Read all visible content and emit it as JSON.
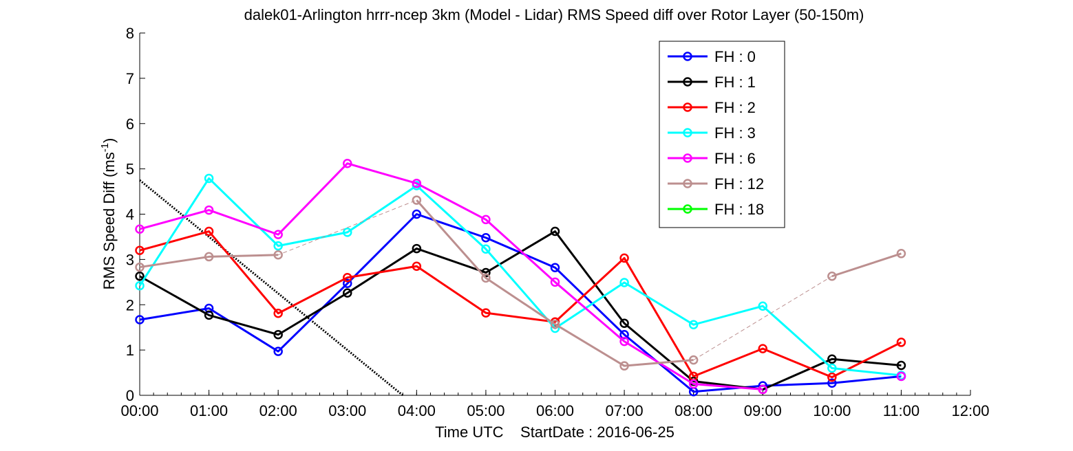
{
  "chart_data": {
    "type": "line",
    "title": "dalek01-Arlington hrrr-ncep 3km (Model - Lidar) RMS Speed diff over Rotor Layer (50-150m)",
    "ylabel_main": "RMS Speed Diff (ms",
    "ylabel_sup": "-1",
    "ylabel_close": ")",
    "xlabel": "Time UTC    StartDate : 2016-06-25",
    "xlim": [
      0,
      12
    ],
    "ylim": [
      0,
      8
    ],
    "x_ticks": [
      0,
      1,
      2,
      3,
      4,
      5,
      6,
      7,
      8,
      9,
      10,
      11,
      12
    ],
    "x_tick_labels": [
      "00:00",
      "01:00",
      "02:00",
      "03:00",
      "04:00",
      "05:00",
      "06:00",
      "07:00",
      "08:00",
      "09:00",
      "10:00",
      "11:00",
      "12:00"
    ],
    "y_ticks": [
      0,
      1,
      2,
      3,
      4,
      5,
      6,
      7,
      8
    ],
    "y_tick_labels": [
      "0",
      "1",
      "2",
      "3",
      "4",
      "5",
      "6",
      "7",
      "8"
    ],
    "grid": false,
    "legend_position": "top-right",
    "series": [
      {
        "name": "FH : 0",
        "color": "#0000ff",
        "x": [
          0,
          1,
          2,
          3,
          4,
          5,
          6,
          7,
          8,
          9,
          10,
          11
        ],
        "y": [
          1.67,
          1.92,
          0.97,
          2.47,
          4.0,
          3.48,
          2.82,
          1.34,
          0.08,
          0.21,
          0.27,
          0.42
        ]
      },
      {
        "name": "FH : 1",
        "color": "#000000",
        "x": [
          0,
          1,
          2,
          3,
          4,
          5,
          6,
          7,
          8,
          9,
          10,
          11
        ],
        "y": [
          2.63,
          1.77,
          1.34,
          2.26,
          3.24,
          2.71,
          3.62,
          1.59,
          0.31,
          0.13,
          0.8,
          0.66
        ]
      },
      {
        "name": "FH : 2",
        "color": "#ff0000",
        "x": [
          0,
          1,
          2,
          3,
          4,
          5,
          6,
          7,
          8,
          9,
          10,
          11
        ],
        "y": [
          3.2,
          3.62,
          1.81,
          2.6,
          2.85,
          1.82,
          1.62,
          3.03,
          0.42,
          1.03,
          0.4,
          1.17
        ]
      },
      {
        "name": "FH : 3",
        "color": "#00ffff",
        "x": [
          0,
          1,
          2,
          3,
          4,
          5,
          6,
          7,
          8,
          9,
          10,
          11
        ],
        "y": [
          2.42,
          4.79,
          3.3,
          3.6,
          4.63,
          3.23,
          1.48,
          2.49,
          1.56,
          1.97,
          0.6,
          0.44
        ]
      },
      {
        "name": "FH : 6",
        "color": "#ff00ff",
        "x": [
          0,
          1,
          2,
          3,
          4,
          5,
          6,
          7,
          8,
          9,
          10,
          11
        ],
        "y": [
          3.67,
          4.09,
          3.55,
          5.12,
          4.68,
          3.88,
          2.5,
          1.19,
          0.25,
          0.13,
          null,
          0.42
        ]
      },
      {
        "name": "FH : 12",
        "color": "#bc8f8f",
        "x": [
          0,
          1,
          2,
          3,
          4,
          5,
          6,
          7,
          8,
          9,
          10,
          11
        ],
        "y": [
          2.83,
          3.06,
          3.1,
          null,
          4.31,
          2.59,
          1.57,
          0.65,
          0.78,
          null,
          2.63,
          3.13
        ],
        "dashed_gaps": true
      },
      {
        "name": "FH : 18",
        "color": "#00ff00",
        "x": [],
        "y": []
      }
    ],
    "reference_line": {
      "style": "dotted",
      "color": "#000000",
      "x": [
        0,
        3.8
      ],
      "y": [
        4.75,
        0
      ]
    }
  }
}
